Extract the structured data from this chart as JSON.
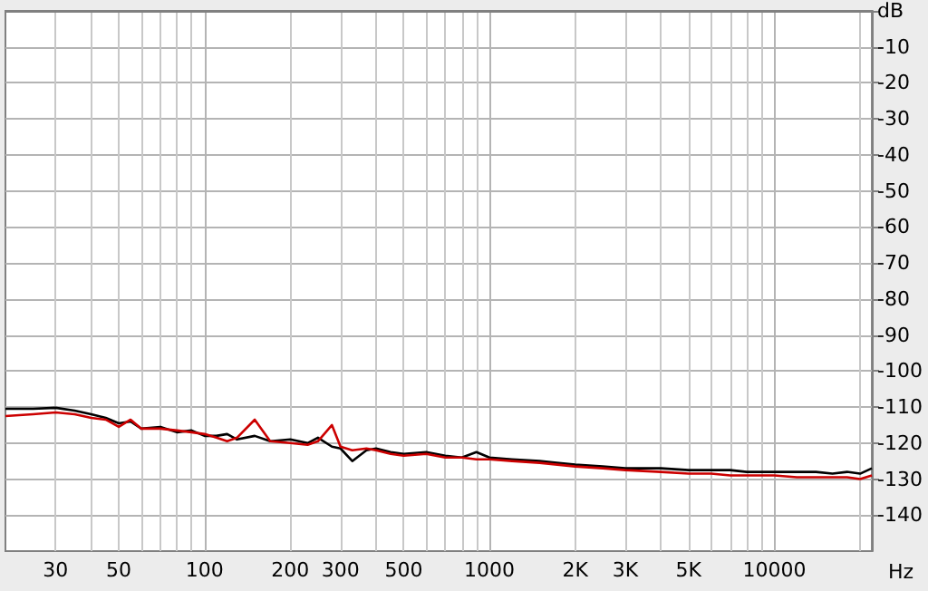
{
  "chart_data": {
    "type": "line",
    "xlabel": "Hz",
    "log": "x",
    "x": [
      20,
      25,
      30,
      35,
      40,
      45,
      50,
      55,
      60,
      70,
      80,
      90,
      100,
      110,
      120,
      130,
      150,
      170,
      200,
      230,
      250,
      280,
      300,
      330,
      370,
      400,
      450,
      500,
      600,
      700,
      800,
      900,
      1000,
      1200,
      1500,
      2000,
      2500,
      3000,
      4000,
      5000,
      6000,
      7000,
      8000,
      10000,
      12000,
      14000,
      16000,
      18000,
      20000,
      22000
    ],
    "series": [
      {
        "color": "#000000",
        "values": [
          -110.5,
          -110.5,
          -110.2,
          -111,
          -112,
          -113,
          -114.5,
          -114,
          -116,
          -115.5,
          -117,
          -116.5,
          -118,
          -118,
          -117.5,
          -119,
          -118,
          -119.5,
          -119,
          -120,
          -118.5,
          -121,
          -121.5,
          -125,
          -122,
          -121.5,
          -122.5,
          -123,
          -122.5,
          -123.5,
          -124,
          -122.5,
          -124,
          -124.5,
          -125,
          -126,
          -126.5,
          -127,
          -127,
          -127.5,
          -127.5,
          -127.5,
          -128,
          -128,
          -128,
          -128,
          -128.5,
          -128,
          -128.5,
          -127
        ]
      },
      {
        "color": "#cc0000",
        "values": [
          -112.5,
          -112,
          -111.5,
          -112,
          -113,
          -113.5,
          -115.5,
          -113.5,
          -116,
          -116,
          -116.5,
          -117,
          -117.5,
          -118.5,
          -119.5,
          -118.5,
          -113.5,
          -119.5,
          -120,
          -120.5,
          -119.5,
          -115,
          -121,
          -122,
          -121.5,
          -122,
          -123,
          -123.5,
          -123,
          -124,
          -124,
          -124.5,
          -124.5,
          -125,
          -125.5,
          -126.5,
          -127,
          -127.5,
          -128,
          -128.5,
          -128.5,
          -129,
          -129,
          -129,
          -129.5,
          -129.5,
          -129.5,
          -129.5,
          -130,
          -129
        ]
      }
    ],
    "xlim": [
      20,
      22000
    ],
    "xticks": [
      30,
      50,
      100,
      200,
      300,
      500,
      1000,
      {
        "value": 2000,
        "label": "2K"
      },
      {
        "value": 3000,
        "label": "3K"
      },
      {
        "value": 5000,
        "label": "5K"
      },
      10000
    ],
    "ylim": [
      -150,
      0
    ],
    "yticks": [
      {
        "value": 0,
        "label": "dB"
      },
      -10,
      -20,
      -30,
      -40,
      -50,
      -60,
      -70,
      -80,
      -90,
      -100,
      -110,
      -120,
      -130,
      -140
    ],
    "grid": true,
    "marker": "none",
    "line_style": "solid"
  }
}
